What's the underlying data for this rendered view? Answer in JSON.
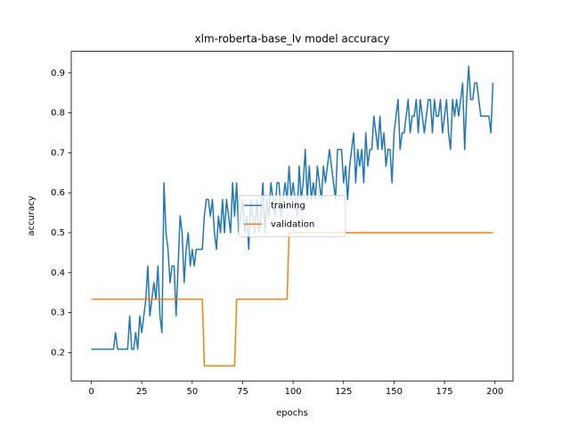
{
  "chart_data": {
    "type": "line",
    "title": "xlm-roberta-base_lv model accuracy",
    "x_label": "epochs",
    "y_label": "accuracy",
    "x": [
      0,
      1,
      2,
      3,
      4,
      5,
      6,
      7,
      8,
      9,
      10,
      11,
      12,
      13,
      14,
      15,
      16,
      17,
      18,
      19,
      20,
      21,
      22,
      23,
      24,
      25,
      26,
      27,
      28,
      29,
      30,
      31,
      32,
      33,
      34,
      35,
      36,
      37,
      38,
      39,
      40,
      41,
      42,
      43,
      44,
      45,
      46,
      47,
      48,
      49,
      50,
      51,
      52,
      53,
      54,
      55,
      56,
      57,
      58,
      59,
      60,
      61,
      62,
      63,
      64,
      65,
      66,
      67,
      68,
      69,
      70,
      71,
      72,
      73,
      74,
      75,
      76,
      77,
      78,
      79,
      80,
      81,
      82,
      83,
      84,
      85,
      86,
      87,
      88,
      89,
      90,
      91,
      92,
      93,
      94,
      95,
      96,
      97,
      98,
      99,
      100,
      101,
      102,
      103,
      104,
      105,
      106,
      107,
      108,
      109,
      110,
      111,
      112,
      113,
      114,
      115,
      116,
      117,
      118,
      119,
      120,
      121,
      122,
      123,
      124,
      125,
      126,
      127,
      128,
      129,
      130,
      131,
      132,
      133,
      134,
      135,
      136,
      137,
      138,
      139,
      140,
      141,
      142,
      143,
      144,
      145,
      146,
      147,
      148,
      149,
      150,
      151,
      152,
      153,
      154,
      155,
      156,
      157,
      158,
      159,
      160,
      161,
      162,
      163,
      164,
      165,
      166,
      167,
      168,
      169,
      170,
      171,
      172,
      173,
      174,
      175,
      176,
      177,
      178,
      179,
      180,
      181,
      182,
      183,
      184,
      185,
      186,
      187,
      188,
      189,
      190,
      191,
      192,
      193,
      194,
      195,
      196,
      197,
      198,
      199
    ],
    "series": [
      {
        "name": "training",
        "color": "#1f77b4",
        "values": [
          0.2083,
          0.2083,
          0.2083,
          0.2083,
          0.2083,
          0.2083,
          0.2083,
          0.2083,
          0.2083,
          0.2083,
          0.2083,
          0.2083,
          0.25,
          0.2083,
          0.2083,
          0.2083,
          0.2083,
          0.2083,
          0.2083,
          0.2917,
          0.2083,
          0.2083,
          0.25,
          0.2083,
          0.2917,
          0.25,
          0.2917,
          0.3333,
          0.4167,
          0.2917,
          0.3333,
          0.375,
          0.3333,
          0.4167,
          0.2917,
          0.25,
          0.625,
          0.5,
          0.4583,
          0.375,
          0.4167,
          0.4167,
          0.2917,
          0.4167,
          0.5417,
          0.5,
          0.375,
          0.4583,
          0.5,
          0.4167,
          0.4583,
          0.4167,
          0.4583,
          0.4583,
          0.4583,
          0.4583,
          0.5417,
          0.5833,
          0.5833,
          0.5417,
          0.5833,
          0.5,
          0.4583,
          0.5417,
          0.5,
          0.5833,
          0.5,
          0.5833,
          0.5417,
          0.5,
          0.625,
          0.5417,
          0.625,
          0.5,
          0.5417,
          0.5833,
          0.5,
          0.5417,
          0.4583,
          0.5833,
          0.5417,
          0.5,
          0.5833,
          0.5,
          0.5417,
          0.625,
          0.5,
          0.5833,
          0.5417,
          0.625,
          0.5833,
          0.5417,
          0.625,
          0.625,
          0.5417,
          0.5833,
          0.625,
          0.5833,
          0.6667,
          0.5833,
          0.625,
          0.5833,
          0.5417,
          0.6667,
          0.5833,
          0.625,
          0.7083,
          0.5833,
          0.6667,
          0.5833,
          0.625,
          0.5833,
          0.6667,
          0.625,
          0.5833,
          0.6667,
          0.625,
          0.6667,
          0.7083,
          0.6667,
          0.625,
          0.5833,
          0.7083,
          0.7083,
          0.7083,
          0.625,
          0.6667,
          0.5833,
          0.6667,
          0.7083,
          0.75,
          0.625,
          0.7083,
          0.6667,
          0.7083,
          0.625,
          0.75,
          0.6667,
          0.7083,
          0.7083,
          0.7917,
          0.75,
          0.7083,
          0.7917,
          0.7083,
          0.75,
          0.6667,
          0.7083,
          0.7083,
          0.625,
          0.75,
          0.7917,
          0.8333,
          0.7083,
          0.75,
          0.75,
          0.7917,
          0.8333,
          0.75,
          0.7917,
          0.7917,
          0.8333,
          0.75,
          0.8333,
          0.7917,
          0.75,
          0.7917,
          0.8333,
          0.8333,
          0.75,
          0.8333,
          0.7917,
          0.7917,
          0.8333,
          0.75,
          0.7917,
          0.8333,
          0.75,
          0.7083,
          0.8333,
          0.7917,
          0.8333,
          0.7917,
          0.8333,
          0.875,
          0.7083,
          0.8333,
          0.9167,
          0.8333,
          0.8333,
          0.875,
          0.875,
          0.8333,
          0.7917,
          0.7917,
          0.7917,
          0.7917,
          0.7917,
          0.75,
          0.875
        ]
      },
      {
        "name": "validation",
        "color": "#ff7f0e",
        "values": [
          0.3333,
          0.3333,
          0.3333,
          0.3333,
          0.3333,
          0.3333,
          0.3333,
          0.3333,
          0.3333,
          0.3333,
          0.3333,
          0.3333,
          0.3333,
          0.3333,
          0.3333,
          0.3333,
          0.3333,
          0.3333,
          0.3333,
          0.3333,
          0.3333,
          0.3333,
          0.3333,
          0.3333,
          0.3333,
          0.3333,
          0.3333,
          0.3333,
          0.3333,
          0.3333,
          0.3333,
          0.3333,
          0.3333,
          0.3333,
          0.3333,
          0.3333,
          0.3333,
          0.3333,
          0.3333,
          0.3333,
          0.3333,
          0.3333,
          0.3333,
          0.3333,
          0.3333,
          0.3333,
          0.3333,
          0.3333,
          0.3333,
          0.3333,
          0.3333,
          0.3333,
          0.3333,
          0.3333,
          0.3333,
          0.3333,
          0.1667,
          0.1667,
          0.1667,
          0.1667,
          0.1667,
          0.1667,
          0.1667,
          0.1667,
          0.1667,
          0.1667,
          0.1667,
          0.1667,
          0.1667,
          0.1667,
          0.1667,
          0.1667,
          0.3333,
          0.3333,
          0.3333,
          0.3333,
          0.3333,
          0.3333,
          0.3333,
          0.3333,
          0.3333,
          0.3333,
          0.3333,
          0.3333,
          0.3333,
          0.3333,
          0.3333,
          0.3333,
          0.3333,
          0.3333,
          0.3333,
          0.3333,
          0.3333,
          0.3333,
          0.3333,
          0.3333,
          0.3333,
          0.3333,
          0.5,
          0.5,
          0.5,
          0.5,
          0.5,
          0.5,
          0.5,
          0.5,
          0.5,
          0.5,
          0.5,
          0.5,
          0.5,
          0.5,
          0.5,
          0.5,
          0.5,
          0.5,
          0.5,
          0.5,
          0.5,
          0.5,
          0.5,
          0.5,
          0.5,
          0.5,
          0.5,
          0.5,
          0.5,
          0.5,
          0.5,
          0.5,
          0.5,
          0.5,
          0.5,
          0.5,
          0.5,
          0.5,
          0.5,
          0.5,
          0.5,
          0.5,
          0.5,
          0.5,
          0.5,
          0.5,
          0.5,
          0.5,
          0.5,
          0.5,
          0.5,
          0.5,
          0.5,
          0.5,
          0.5,
          0.5,
          0.5,
          0.5,
          0.5,
          0.5,
          0.5,
          0.5,
          0.5,
          0.5,
          0.5,
          0.5,
          0.5,
          0.5,
          0.5,
          0.5,
          0.5,
          0.5,
          0.5,
          0.5,
          0.5,
          0.5,
          0.5,
          0.5,
          0.5,
          0.5,
          0.5,
          0.5,
          0.5,
          0.5,
          0.5,
          0.5,
          0.5,
          0.5,
          0.5,
          0.5,
          0.5,
          0.5,
          0.5,
          0.5,
          0.5,
          0.5,
          0.5,
          0.5,
          0.5,
          0.5,
          0.5,
          0.5
        ]
      }
    ],
    "xlim": [
      -9.95,
      208.95
    ],
    "xticks": [
      0,
      25,
      50,
      75,
      100,
      125,
      150,
      175,
      200
    ],
    "ylim": [
      0.129,
      0.954
    ],
    "yticks": [
      0.2,
      0.3,
      0.4,
      0.5,
      0.6,
      0.7,
      0.8,
      0.9
    ],
    "legend": "center"
  }
}
